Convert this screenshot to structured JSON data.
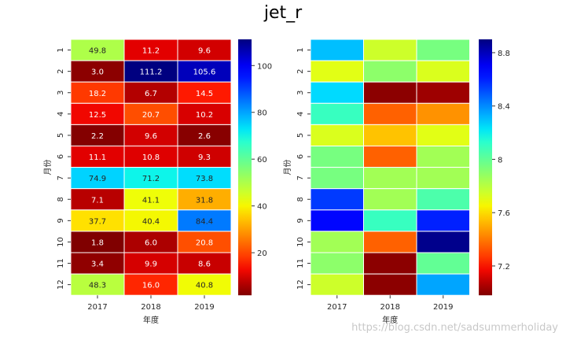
{
  "figure": {
    "title": "jet_r",
    "watermark": "https://blog.csdn.net/sadsummerholiday"
  },
  "chart_data": [
    {
      "type": "heatmap",
      "colormap": "jet_r",
      "x": [
        "2017",
        "2018",
        "2019"
      ],
      "y": [
        "1",
        "2",
        "3",
        "4",
        "5",
        "6",
        "7",
        "8",
        "9",
        "10",
        "11",
        "12"
      ],
      "xlabel": "年度",
      "ylabel": "月份",
      "annotated": true,
      "values": [
        [
          49.8,
          11.2,
          9.6
        ],
        [
          3.0,
          111.2,
          105.6
        ],
        [
          18.2,
          6.7,
          14.5
        ],
        [
          12.5,
          20.7,
          10.2
        ],
        [
          2.2,
          9.6,
          2.6
        ],
        [
          11.1,
          10.8,
          9.3
        ],
        [
          74.9,
          71.2,
          73.8
        ],
        [
          7.1,
          41.1,
          31.8
        ],
        [
          37.7,
          40.4,
          84.4
        ],
        [
          1.8,
          6.0,
          20.8
        ],
        [
          3.4,
          9.9,
          8.6
        ],
        [
          48.3,
          16.0,
          40.8
        ]
      ],
      "colorbar": {
        "range": [
          1.8,
          111.2
        ],
        "ticks": [
          20,
          40,
          60,
          80,
          100
        ]
      }
    },
    {
      "type": "heatmap",
      "colormap": "jet_r",
      "x": [
        "2017",
        "2018",
        "2019"
      ],
      "y": [
        "1",
        "2",
        "3",
        "4",
        "5",
        "6",
        "7",
        "8",
        "9",
        "10",
        "11",
        "12"
      ],
      "xlabel": "年度",
      "ylabel": "月份",
      "annotated": false,
      "values": [
        [
          8.3,
          7.75,
          7.95
        ],
        [
          7.7,
          7.9,
          7.72
        ],
        [
          8.25,
          7.0,
          7.03
        ],
        [
          8.1,
          7.35,
          7.45
        ],
        [
          7.72,
          7.55,
          7.7
        ],
        [
          7.95,
          7.35,
          7.85
        ],
        [
          7.95,
          7.85,
          7.85
        ],
        [
          8.55,
          7.85,
          8.05
        ],
        [
          8.65,
          8.1,
          8.6
        ],
        [
          7.85,
          7.35,
          8.88
        ],
        [
          7.9,
          7.0,
          8.0
        ],
        [
          7.75,
          7.0,
          8.35
        ]
      ],
      "colorbar": {
        "range": [
          6.98,
          8.9
        ],
        "ticks": [
          7.2,
          7.6,
          8.0,
          8.4,
          8.8
        ]
      }
    }
  ]
}
